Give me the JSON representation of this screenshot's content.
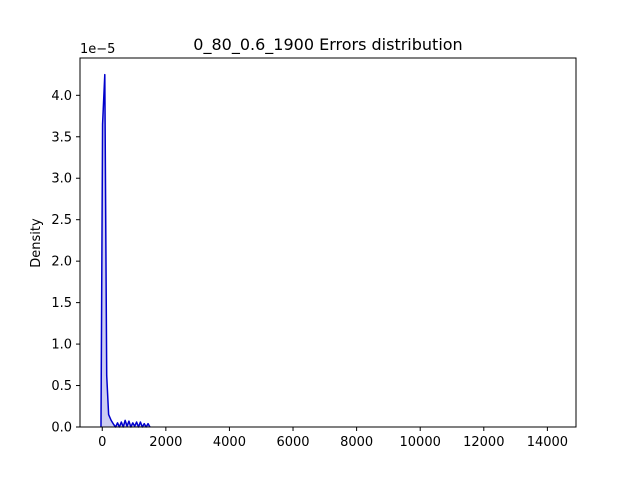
{
  "chart_data": {
    "type": "area",
    "title": "0_80_0.6_1900 Errors distribution",
    "xlabel": "",
    "ylabel": "Density",
    "y_offset_label": "1e−5",
    "xlim": [
      -700,
      14900
    ],
    "ylim": [
      0,
      4.45
    ],
    "x_ticks": [
      0,
      2000,
      4000,
      6000,
      8000,
      10000,
      12000,
      14000
    ],
    "x_tick_labels": [
      "0",
      "2000",
      "4000",
      "6000",
      "8000",
      "10000",
      "12000",
      "14000"
    ],
    "y_ticks": [
      0.0,
      0.5,
      1.0,
      1.5,
      2.0,
      2.5,
      3.0,
      3.5,
      4.0
    ],
    "y_tick_labels": [
      "0.0",
      "0.5",
      "1.0",
      "1.5",
      "2.0",
      "2.5",
      "3.0",
      "3.5",
      "4.0"
    ],
    "grid": false,
    "colors": {
      "line": "#0000cc",
      "fill": "#c8c8f0"
    },
    "series": [
      {
        "x": [
          -40,
          10,
          80,
          140,
          200,
          280,
          360,
          420,
          480,
          540,
          600,
          660,
          720,
          780,
          840,
          900,
          960,
          1020,
          1080,
          1140,
          1200,
          1260,
          1320,
          1380,
          1440,
          1500
        ],
        "y": [
          0.0,
          3.65,
          4.25,
          0.62,
          0.15,
          0.08,
          0.03,
          0.0,
          0.05,
          0.0,
          0.06,
          0.0,
          0.08,
          0.01,
          0.07,
          0.0,
          0.05,
          0.01,
          0.06,
          0.0,
          0.06,
          0.0,
          0.04,
          0.0,
          0.04,
          0.0
        ]
      }
    ]
  }
}
